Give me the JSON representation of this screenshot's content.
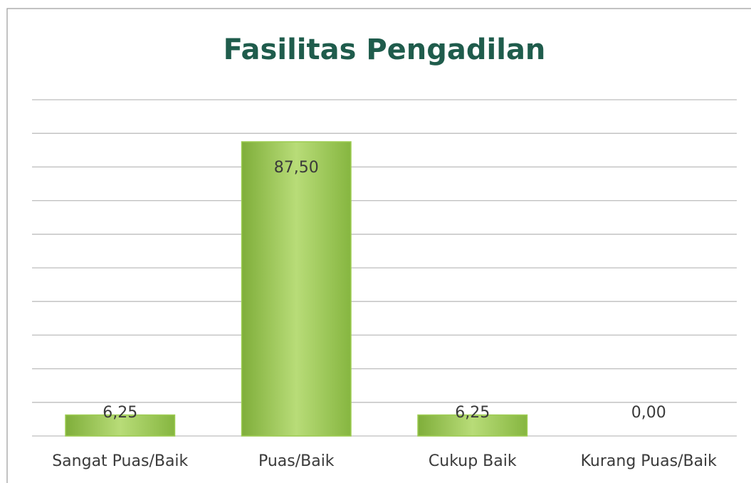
{
  "chart_data": {
    "type": "bar",
    "title": "Fasilitas Pengadilan",
    "categories": [
      "Sangat Puas/Baik",
      "Puas/Baik",
      "Cukup Baik",
      "Kurang Puas/Baik"
    ],
    "values": [
      6.25,
      87.5,
      6.25,
      0
    ],
    "value_labels": [
      "6,25",
      "87,50",
      "6,25",
      "0,00"
    ],
    "color": "#9ccc4f",
    "ylim": [
      0,
      100
    ],
    "yticks": [
      0,
      10,
      20,
      30,
      40,
      50,
      60,
      70,
      80,
      90,
      100
    ],
    "grid": true
  }
}
